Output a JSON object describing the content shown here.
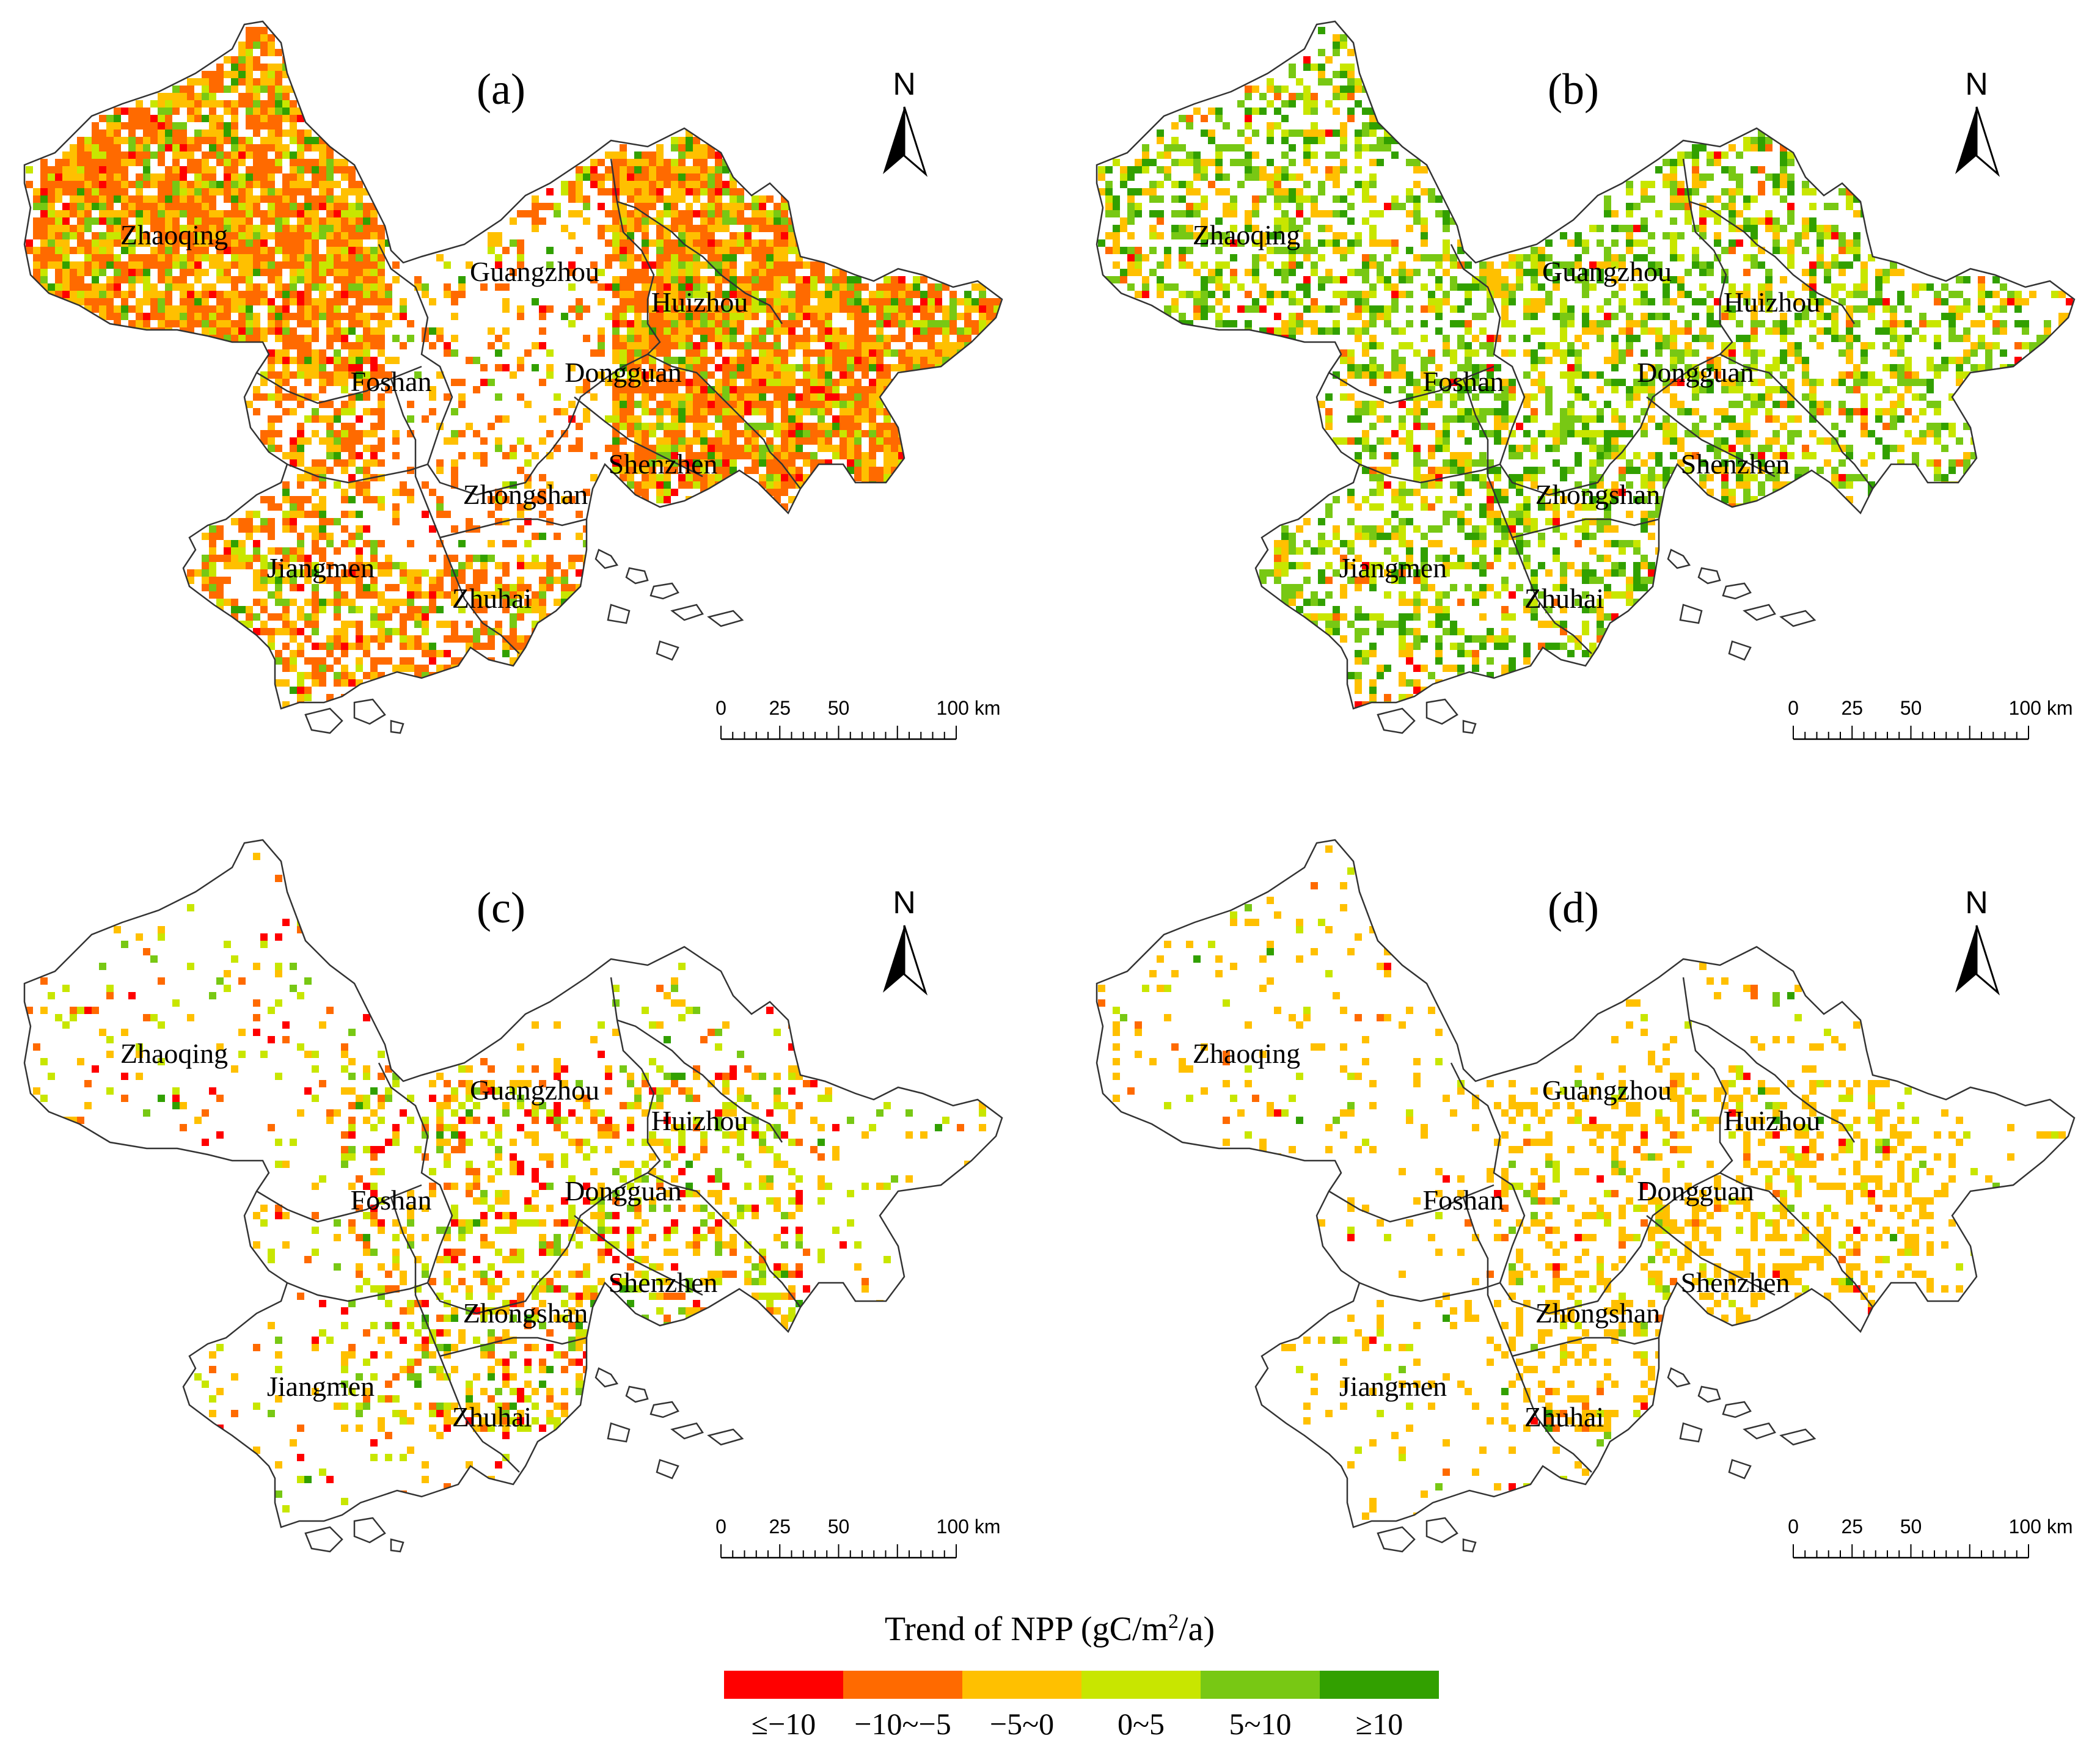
{
  "panels": [
    {
      "label": "(a)",
      "fill_density": 0.85,
      "mix": [
        0.05,
        0.45,
        0.3,
        0.08,
        0.08,
        0.04
      ]
    },
    {
      "label": "(b)",
      "fill_density": 0.45,
      "mix": [
        0.02,
        0.04,
        0.22,
        0.22,
        0.3,
        0.2
      ]
    },
    {
      "label": "(c)",
      "fill_density": 0.18,
      "mix": [
        0.12,
        0.15,
        0.3,
        0.3,
        0.1,
        0.03
      ]
    },
    {
      "label": "(d)",
      "fill_density": 0.15,
      "mix": [
        0.03,
        0.05,
        0.75,
        0.12,
        0.04,
        0.01
      ]
    }
  ],
  "cities": [
    "Zhaoqing",
    "Guangzhou",
    "Huizhou",
    "Foshan",
    "Dongguan",
    "Shenzhen",
    "Zhongshan",
    "Jiangmen",
    "Zhuhai"
  ],
  "north_arrow": {
    "label": "N"
  },
  "scale_bar": {
    "ticks": [
      "0",
      "25",
      "50",
      "100 km"
    ]
  },
  "legend": {
    "title_prefix": "Trend of NPP (gC/m",
    "title_sup": "2",
    "title_suffix": "/a)",
    "classes": [
      {
        "label": "≤−10",
        "color": "#ff0000"
      },
      {
        "label": "−10~−5",
        "color": "#ff6a00"
      },
      {
        "label": "−5~0",
        "color": "#ffc000"
      },
      {
        "label": "0~5",
        "color": "#c8e600"
      },
      {
        "label": "5~10",
        "color": "#78c814"
      },
      {
        "label": "≥10",
        "color": "#32a000"
      }
    ]
  }
}
